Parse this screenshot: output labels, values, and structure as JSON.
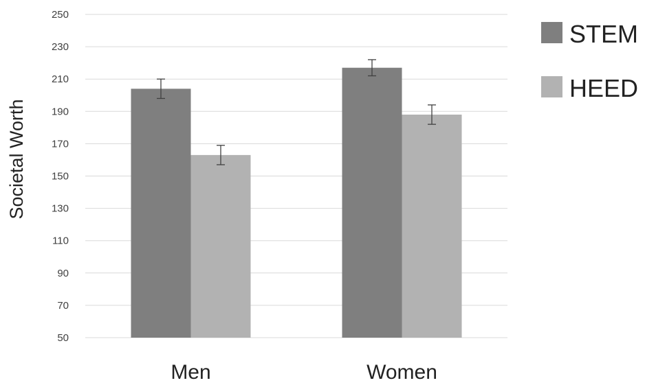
{
  "chart_data": {
    "type": "bar",
    "categories": [
      "Men",
      "Women"
    ],
    "series": [
      {
        "name": "STEM",
        "values": [
          204,
          217
        ],
        "error": [
          6,
          5
        ],
        "color": "#7f7f7f"
      },
      {
        "name": "HEED",
        "values": [
          163,
          188
        ],
        "error": [
          6,
          6
        ],
        "color": "#b2b2b2"
      }
    ],
    "title": "",
    "xlabel": "",
    "ylabel": "Societal Worth",
    "ylim": [
      50,
      250
    ],
    "yticks": [
      50,
      70,
      90,
      110,
      130,
      150,
      170,
      190,
      210,
      230,
      250
    ],
    "grid": true,
    "legend_position": "top-right"
  }
}
